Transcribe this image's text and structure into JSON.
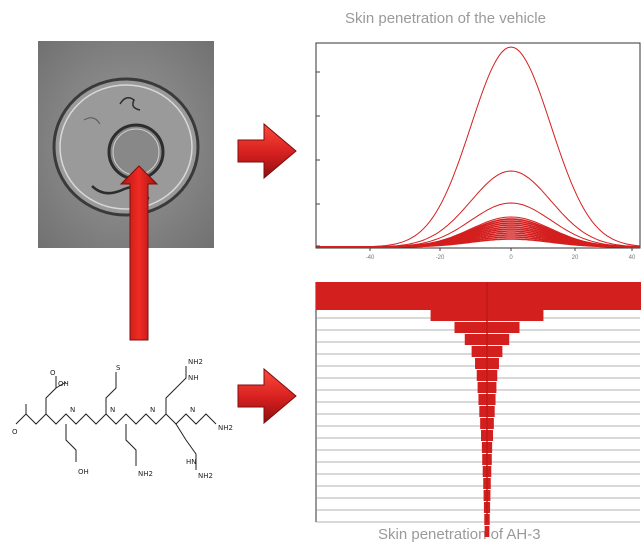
{
  "captions": {
    "top_chart": "Skin penetration of the vehicle",
    "bottom_chart": "Skin penetration of AH-3"
  },
  "colors": {
    "accent_red": "#d41f1f",
    "dark_red": "#9e1212",
    "micrograph_gray": "#8a8a8a",
    "caption_gray": "#9a9a9a"
  },
  "icons": {
    "arrow_right": "block-arrow-right-icon",
    "arrow_up": "long-arrow-up-icon"
  },
  "molecule_labels": [
    "OH",
    "O",
    "S",
    "NH",
    "NH2",
    "HN",
    "N",
    "H"
  ],
  "chart_data": [
    {
      "type": "line",
      "title": "Skin penetration of the vehicle",
      "x_ticks": [
        "-40",
        "-20",
        "0",
        "20",
        "40"
      ],
      "series_peaks": [
        1.0,
        0.38,
        0.22,
        0.15,
        0.14,
        0.13,
        0.12,
        0.11,
        0.1,
        0.09,
        0.08,
        0.07,
        0.06,
        0.05,
        0.04
      ]
    },
    {
      "type": "bar",
      "orientation": "horizontal-centered",
      "title": "Skin penetration of AH-3",
      "values": [
        1.0,
        0.33,
        0.19,
        0.13,
        0.09,
        0.07,
        0.06,
        0.055,
        0.05,
        0.045,
        0.04,
        0.035,
        0.03,
        0.028,
        0.025,
        0.022,
        0.02,
        0.018,
        0.016,
        0.014
      ]
    }
  ]
}
